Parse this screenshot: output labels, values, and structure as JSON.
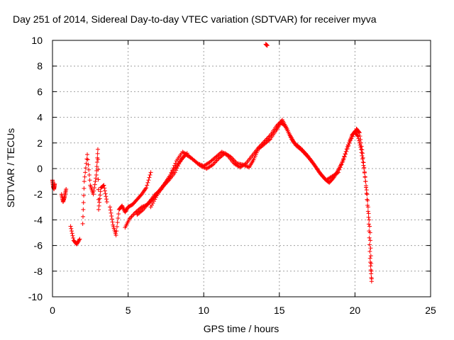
{
  "chart_data": {
    "type": "scatter",
    "title": "Day 251 of 2014, Sidereal Day-to-day VTEC variation (SDTVAR) for receiver myva",
    "xlabel": "GPS time / hours",
    "ylabel": "SDTVAR / TECUs",
    "xlim": [
      0,
      25
    ],
    "ylim": [
      -10,
      10
    ],
    "xticks": [
      0,
      5,
      10,
      15,
      20,
      25
    ],
    "yticks": [
      -10,
      -8,
      -6,
      -4,
      -2,
      0,
      2,
      4,
      6,
      8,
      10
    ],
    "grid": true,
    "marker": "+",
    "series": [
      {
        "name": "SDTVAR",
        "color": "#ff0000",
        "segments": [
          [
            [
              0.0,
              -0.9
            ],
            [
              0.05,
              -1.4
            ],
            [
              0.1,
              -1.6
            ],
            [
              0.15,
              -1.2
            ]
          ],
          [
            [
              0.6,
              -2.0
            ],
            [
              0.7,
              -2.6
            ],
            [
              0.8,
              -2.2
            ],
            [
              0.9,
              -1.6
            ]
          ],
          [
            [
              1.2,
              -4.5
            ],
            [
              1.4,
              -5.6
            ],
            [
              1.6,
              -5.9
            ],
            [
              1.8,
              -5.5
            ]
          ],
          [
            [
              2.0,
              -4.3
            ],
            [
              2.1,
              -1.0
            ],
            [
              2.3,
              1.1
            ],
            [
              2.5,
              -1.3
            ],
            [
              2.7,
              -2.0
            ],
            [
              2.9,
              -0.5
            ],
            [
              3.0,
              1.5
            ],
            [
              3.05,
              -3.2
            ],
            [
              3.2,
              -1.5
            ],
            [
              3.4,
              -1.3
            ],
            [
              3.6,
              -2.6
            ]
          ],
          [
            [
              3.8,
              -3.0
            ],
            [
              4.0,
              -4.4
            ],
            [
              4.2,
              -5.2
            ],
            [
              4.4,
              -3.2
            ],
            [
              4.6,
              -2.9
            ],
            [
              4.8,
              -3.4
            ],
            [
              5.0,
              -3.0
            ],
            [
              5.3,
              -2.8
            ],
            [
              5.6,
              -2.4
            ],
            [
              5.9,
              -2.0
            ],
            [
              6.2,
              -1.5
            ],
            [
              6.5,
              -0.3
            ]
          ],
          [
            [
              4.8,
              -4.6
            ],
            [
              5.1,
              -3.9
            ],
            [
              5.5,
              -3.4
            ],
            [
              5.9,
              -3.0
            ],
            [
              6.3,
              -2.8
            ],
            [
              6.7,
              -2.3
            ],
            [
              7.0,
              -1.8
            ],
            [
              7.4,
              -1.2
            ],
            [
              7.8,
              -0.5
            ],
            [
              8.2,
              0.6
            ],
            [
              8.6,
              1.3
            ],
            [
              9.0,
              1.0
            ],
            [
              9.4,
              0.6
            ],
            [
              9.8,
              0.2
            ],
            [
              10.2,
              0.0
            ],
            [
              10.6,
              0.3
            ],
            [
              11.0,
              0.8
            ],
            [
              11.4,
              1.2
            ],
            [
              11.8,
              0.9
            ],
            [
              12.2,
              0.4
            ],
            [
              12.6,
              0.3
            ],
            [
              13.0,
              0.1
            ],
            [
              13.3,
              0.7
            ],
            [
              13.6,
              1.5
            ],
            [
              14.0,
              1.9
            ],
            [
              14.4,
              2.3
            ],
            [
              14.8,
              3.0
            ],
            [
              15.1,
              3.6
            ],
            [
              15.4,
              3.3
            ],
            [
              15.7,
              2.6
            ],
            [
              16.0,
              2.0
            ],
            [
              16.4,
              1.6
            ],
            [
              16.8,
              1.1
            ],
            [
              17.2,
              0.5
            ],
            [
              17.6,
              -0.2
            ],
            [
              18.0,
              -0.8
            ],
            [
              18.3,
              -1.1
            ],
            [
              18.6,
              -0.7
            ],
            [
              18.9,
              -0.1
            ],
            [
              19.2,
              0.6
            ],
            [
              19.5,
              1.7
            ],
            [
              19.8,
              2.6
            ],
            [
              20.0,
              2.9
            ],
            [
              20.2,
              2.5
            ],
            [
              20.4,
              1.5
            ],
            [
              20.6,
              0.0
            ],
            [
              20.8,
              -2.0
            ],
            [
              21.0,
              -5.0
            ],
            [
              21.1,
              -8.6
            ]
          ],
          [
            [
              5.6,
              -3.6
            ],
            [
              6.0,
              -3.2
            ],
            [
              6.4,
              -2.6
            ],
            [
              6.8,
              -2.0
            ],
            [
              7.2,
              -1.6
            ],
            [
              7.6,
              -0.9
            ],
            [
              8.0,
              -0.1
            ],
            [
              8.4,
              0.5
            ],
            [
              8.8,
              1.1
            ],
            [
              9.2,
              0.8
            ],
            [
              9.6,
              0.4
            ],
            [
              10.0,
              0.2
            ],
            [
              10.4,
              0.5
            ],
            [
              10.8,
              0.9
            ],
            [
              11.2,
              1.3
            ],
            [
              11.6,
              1.0
            ],
            [
              12.0,
              0.4
            ],
            [
              12.4,
              0.1
            ],
            [
              12.8,
              0.4
            ],
            [
              13.2,
              1.0
            ],
            [
              13.6,
              1.6
            ],
            [
              14.0,
              2.1
            ],
            [
              14.4,
              2.6
            ],
            [
              14.8,
              3.3
            ],
            [
              15.2,
              3.8
            ],
            [
              15.5,
              3.1
            ],
            [
              15.8,
              2.3
            ],
            [
              16.1,
              1.8
            ],
            [
              16.5,
              1.4
            ],
            [
              16.9,
              0.9
            ],
            [
              17.3,
              0.3
            ],
            [
              17.7,
              -0.4
            ],
            [
              18.1,
              -0.9
            ],
            [
              18.5,
              -0.6
            ],
            [
              18.9,
              -0.3
            ],
            [
              19.3,
              0.9
            ],
            [
              19.7,
              2.2
            ],
            [
              20.1,
              3.1
            ],
            [
              20.3,
              2.8
            ],
            [
              20.5,
              1.2
            ],
            [
              20.7,
              -1.0
            ],
            [
              20.9,
              -3.8
            ],
            [
              21.0,
              -7.0
            ],
            [
              21.1,
              -8.8
            ]
          ],
          [
            [
              6.5,
              -3.0
            ],
            [
              6.9,
              -2.1
            ],
            [
              7.3,
              -1.4
            ],
            [
              7.7,
              -0.9
            ],
            [
              8.1,
              -0.3
            ],
            [
              8.5,
              0.7
            ],
            [
              8.9,
              1.2
            ]
          ],
          [
            [
              14.1,
              9.7
            ],
            [
              14.2,
              9.6
            ]
          ]
        ]
      }
    ]
  }
}
